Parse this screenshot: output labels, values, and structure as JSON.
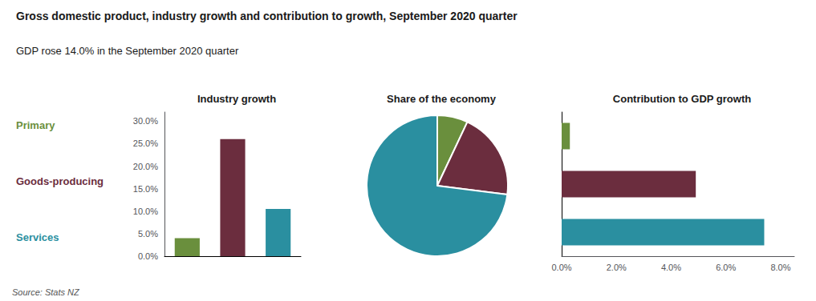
{
  "title": "Gross domestic product, industry growth and contribution to growth, September 2020 quarter",
  "subtitle": "GDP rose 14.0% in the September 2020 quarter",
  "annotations": [
    "Source: Stats NZ"
  ],
  "categories": [
    "Primary",
    "Goods-producing",
    "Services"
  ],
  "colors": [
    "#6a8f3d",
    "#6b2d3e",
    "#2a8fa0"
  ],
  "chart_data": [
    {
      "type": "bar",
      "title": "Industry growth",
      "categories": [
        "Primary",
        "Goods-producing",
        "Services"
      ],
      "values": [
        0.04,
        0.26,
        0.105
      ],
      "colors": [
        "#6a8f3d",
        "#6b2d3e",
        "#2a8fa0"
      ],
      "ylim": [
        0,
        0.32
      ],
      "yticks": [
        {
          "value": 0.0,
          "label": "0.0%"
        },
        {
          "value": 0.05,
          "label": "5.0%"
        },
        {
          "value": 0.1,
          "label": "10.0%"
        },
        {
          "value": 0.15,
          "label": "15.0%"
        },
        {
          "value": 0.2,
          "label": "20.0%"
        },
        {
          "value": 0.25,
          "label": "25.0%"
        },
        {
          "value": 0.3,
          "label": "30.0%"
        }
      ],
      "tick_labels": "y",
      "grid": false
    },
    {
      "type": "pie",
      "title": "Share of the economy",
      "categories": [
        "Primary",
        "Goods-producing",
        "Services"
      ],
      "values": [
        7,
        20,
        73
      ],
      "colors": [
        "#6a8f3d",
        "#6b2d3e",
        "#2a8fa0"
      ]
    },
    {
      "type": "bar",
      "orientation": "horizontal",
      "title": "Contribution to GDP growth",
      "categories": [
        "Primary",
        "Goods-producing",
        "Services"
      ],
      "values": [
        0.003,
        0.049,
        0.074
      ],
      "colors": [
        "#6a8f3d",
        "#6b2d3e",
        "#2a8fa0"
      ],
      "xlim": [
        0,
        0.085
      ],
      "xticks": [
        {
          "value": 0.0,
          "label": "0.0%"
        },
        {
          "value": 0.02,
          "label": "2.0%"
        },
        {
          "value": 0.04,
          "label": "4.0%"
        },
        {
          "value": 0.06,
          "label": "6.0%"
        },
        {
          "value": 0.08,
          "label": "8.0%"
        }
      ],
      "tick_labels": "x",
      "grid": false
    }
  ]
}
